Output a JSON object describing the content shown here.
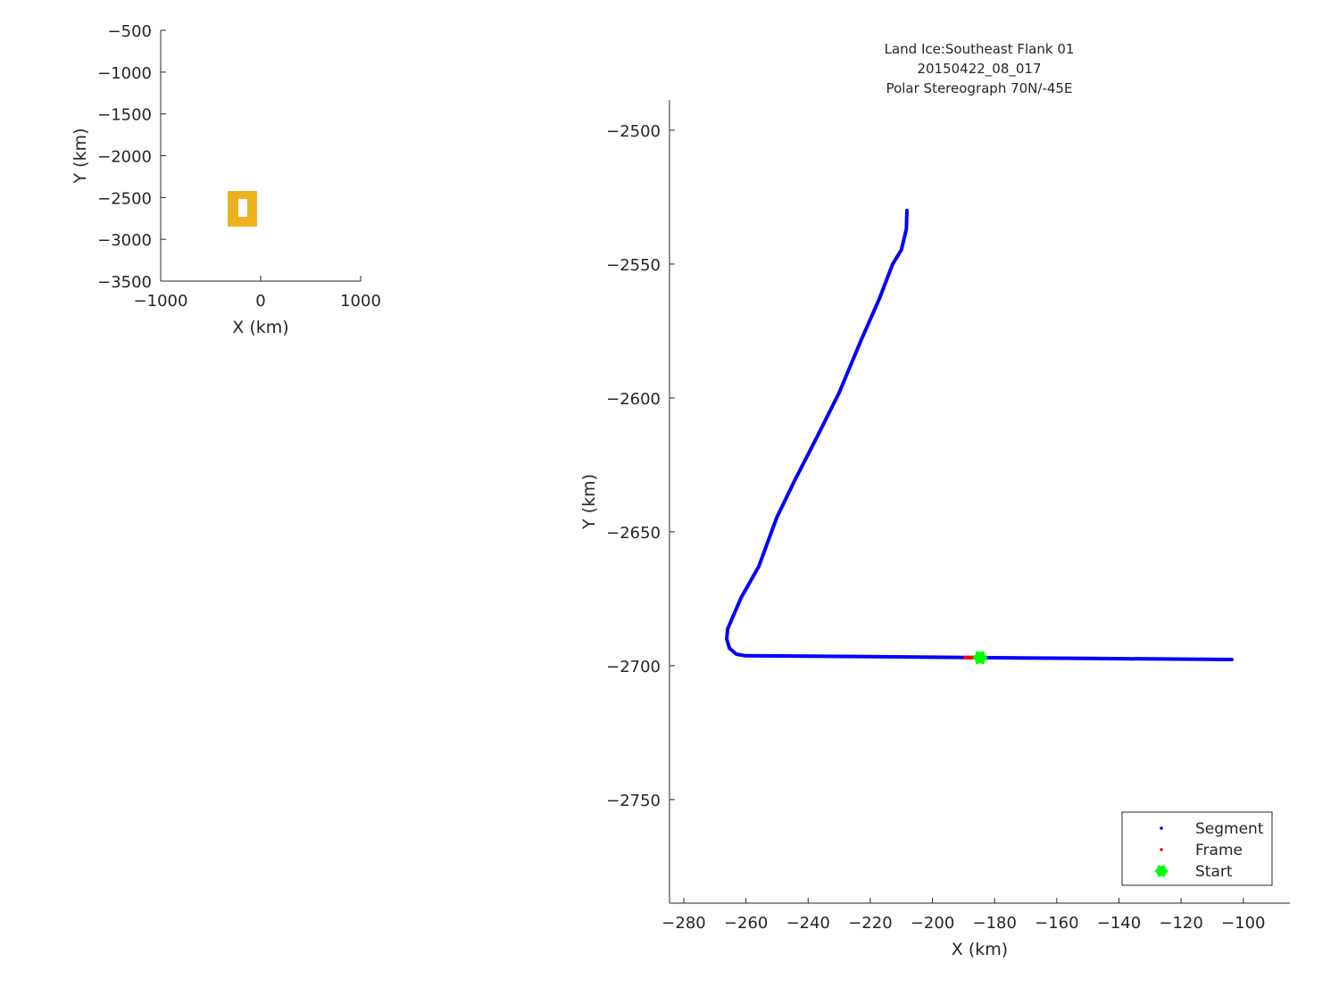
{
  "chart_data": [
    {
      "type": "line",
      "xlabel": "X (km)",
      "ylabel": "Y (km)",
      "xlim": [
        -1000,
        1000
      ],
      "ylim": [
        -3500,
        -500
      ],
      "xticks": [
        -1000,
        0,
        1000
      ],
      "yticks": [
        -500,
        -1000,
        -1500,
        -2000,
        -2500,
        -3000,
        -3500
      ],
      "grid": false,
      "series": [
        {
          "color": "#edb120",
          "x": [
            -321,
            -45,
            -45,
            -321,
            -321
          ],
          "y": [
            -2432,
            -2432,
            -2837,
            -2837,
            -2432
          ]
        }
      ],
      "inner_blank": {
        "x": [
          -223,
          -134
        ],
        "y": [
          -2731,
          -2518
        ]
      }
    },
    {
      "type": "line",
      "title": [
        "Land Ice:Southeast Flank 01",
        "20150422_08_017",
        "Polar Stereograph 70N/-45E"
      ],
      "xlabel": "X (km)",
      "ylabel": "Y (km)",
      "xlim": [
        -284.6,
        -85
      ],
      "ylim": [
        -2788.7,
        -2488.7
      ],
      "xticks": [
        -280,
        -260,
        -240,
        -220,
        -200,
        -180,
        -160,
        -140,
        -120,
        -100
      ],
      "yticks": [
        -2500,
        -2550,
        -2600,
        -2650,
        -2700,
        -2750
      ],
      "grid": false,
      "legend": "bottom-right",
      "series": [
        {
          "name": "Segment",
          "color": "#0000ff",
          "x": [
            -208.2,
            -208.4,
            -210,
            -212.8,
            -217.1,
            -222.8,
            -230,
            -237.2,
            -244.4,
            -250.1,
            -255.9,
            -261.6,
            -265.9,
            -266.2,
            -265.3,
            -263.1,
            -260.2,
            -220,
            -184.5,
            -150,
            -103.7
          ],
          "y": [
            -2530,
            -2537,
            -2544.7,
            -2550,
            -2563,
            -2578,
            -2598,
            -2614.7,
            -2631,
            -2644.7,
            -2663,
            -2674.7,
            -2686.3,
            -2690,
            -2693.5,
            -2695.7,
            -2696.3,
            -2696.6,
            -2697,
            -2697.3,
            -2697.7
          ]
        },
        {
          "name": "Frame",
          "color": "#ff0000",
          "x": [
            -190,
            -186.4
          ],
          "y": [
            -2697,
            -2697
          ]
        },
        {
          "name": "Start",
          "color": "#00ff00",
          "marker": "hexagram",
          "x": [
            -184.7
          ],
          "y": [
            -2697
          ]
        }
      ]
    }
  ]
}
